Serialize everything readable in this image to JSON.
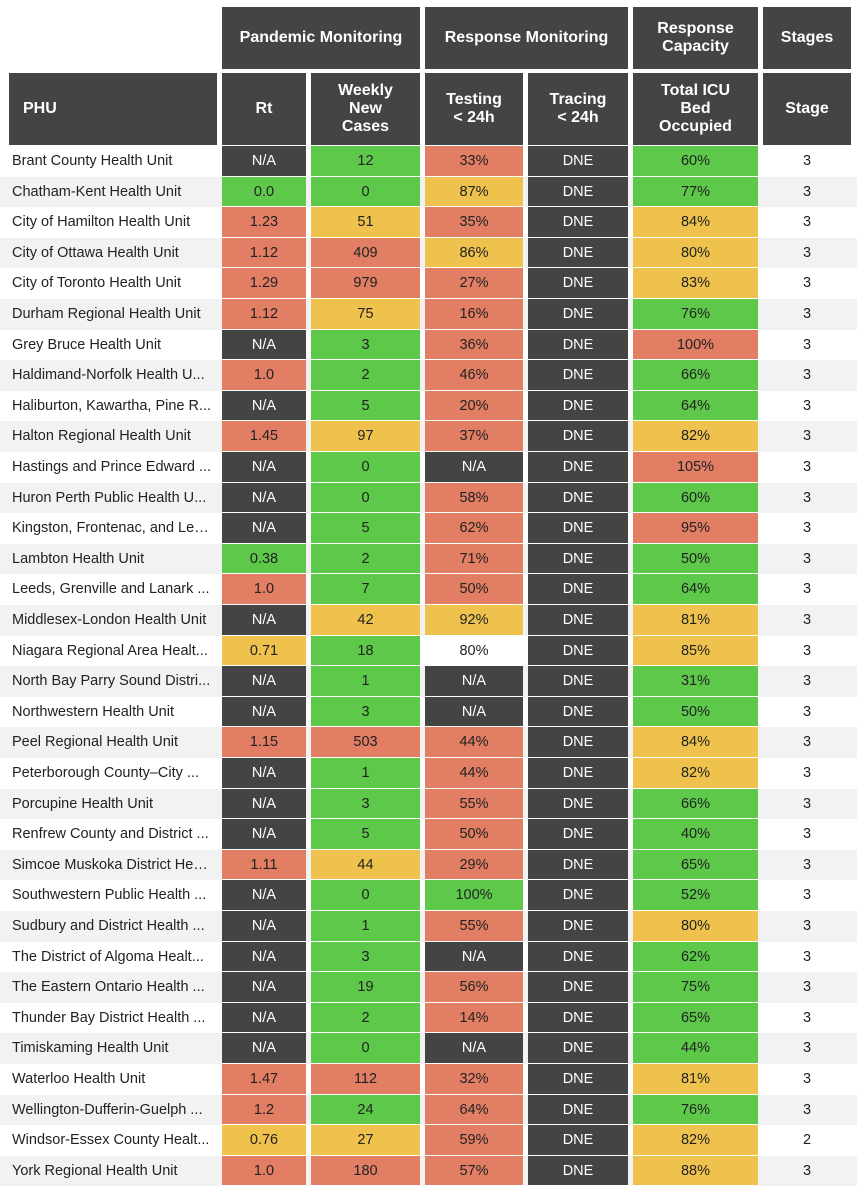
{
  "chart_data": {
    "type": "table",
    "header_groups": [
      {
        "label": "Pandemic Monitoring",
        "span": [
          "rt",
          "cases"
        ]
      },
      {
        "label": "Response Monitoring",
        "span": [
          "testing",
          "tracing"
        ]
      },
      {
        "label": "Response Capacity",
        "span": [
          "icu"
        ]
      },
      {
        "label": "Stages",
        "span": [
          "stage"
        ]
      }
    ],
    "columns": {
      "phu": "PHU",
      "rt": "Rt",
      "cases": "Weekly\nNew\nCases",
      "testing": "Testing\n< 24h",
      "tracing": "Tracing\n< 24h",
      "icu": "Total ICU\nBed\nOccupied",
      "stage": "Stage"
    },
    "colors": {
      "header": "#444444",
      "green": "#5dc84a",
      "yellow": "#efc24d",
      "red": "#e27e63",
      "dark": "#444444",
      "none": "#ffffff",
      "row_alt": "#f2f2f2"
    },
    "rows": [
      {
        "phu": "Brant County Health Unit",
        "rt": [
          "N/A",
          "dark"
        ],
        "cases": [
          "12",
          "green"
        ],
        "testing": [
          "33%",
          "red"
        ],
        "tracing": [
          "DNE",
          "dark"
        ],
        "icu": [
          "60%",
          "green"
        ],
        "stage": "3"
      },
      {
        "phu": "Chatham-Kent Health Unit",
        "rt": [
          "0.0",
          "green"
        ],
        "cases": [
          "0",
          "green"
        ],
        "testing": [
          "87%",
          "yellow"
        ],
        "tracing": [
          "DNE",
          "dark"
        ],
        "icu": [
          "77%",
          "green"
        ],
        "stage": "3"
      },
      {
        "phu": "City of Hamilton Health Unit",
        "rt": [
          "1.23",
          "red"
        ],
        "cases": [
          "51",
          "yellow"
        ],
        "testing": [
          "35%",
          "red"
        ],
        "tracing": [
          "DNE",
          "dark"
        ],
        "icu": [
          "84%",
          "yellow"
        ],
        "stage": "3"
      },
      {
        "phu": "City of Ottawa Health Unit",
        "rt": [
          "1.12",
          "red"
        ],
        "cases": [
          "409",
          "red"
        ],
        "testing": [
          "86%",
          "yellow"
        ],
        "tracing": [
          "DNE",
          "dark"
        ],
        "icu": [
          "80%",
          "yellow"
        ],
        "stage": "3"
      },
      {
        "phu": "City of Toronto Health Unit",
        "rt": [
          "1.29",
          "red"
        ],
        "cases": [
          "979",
          "red"
        ],
        "testing": [
          "27%",
          "red"
        ],
        "tracing": [
          "DNE",
          "dark"
        ],
        "icu": [
          "83%",
          "yellow"
        ],
        "stage": "3"
      },
      {
        "phu": "Durham Regional Health Unit",
        "rt": [
          "1.12",
          "red"
        ],
        "cases": [
          "75",
          "yellow"
        ],
        "testing": [
          "16%",
          "red"
        ],
        "tracing": [
          "DNE",
          "dark"
        ],
        "icu": [
          "76%",
          "green"
        ],
        "stage": "3"
      },
      {
        "phu": "Grey Bruce Health Unit",
        "rt": [
          "N/A",
          "dark"
        ],
        "cases": [
          "3",
          "green"
        ],
        "testing": [
          "36%",
          "red"
        ],
        "tracing": [
          "DNE",
          "dark"
        ],
        "icu": [
          "100%",
          "red"
        ],
        "stage": "3"
      },
      {
        "phu": "Haldimand-Norfolk Health U...",
        "rt": [
          "1.0",
          "red"
        ],
        "cases": [
          "2",
          "green"
        ],
        "testing": [
          "46%",
          "red"
        ],
        "tracing": [
          "DNE",
          "dark"
        ],
        "icu": [
          "66%",
          "green"
        ],
        "stage": "3"
      },
      {
        "phu": "Haliburton, Kawartha, Pine R...",
        "rt": [
          "N/A",
          "dark"
        ],
        "cases": [
          "5",
          "green"
        ],
        "testing": [
          "20%",
          "red"
        ],
        "tracing": [
          "DNE",
          "dark"
        ],
        "icu": [
          "64%",
          "green"
        ],
        "stage": "3"
      },
      {
        "phu": "Halton Regional Health Unit",
        "rt": [
          "1.45",
          "red"
        ],
        "cases": [
          "97",
          "yellow"
        ],
        "testing": [
          "37%",
          "red"
        ],
        "tracing": [
          "DNE",
          "dark"
        ],
        "icu": [
          "82%",
          "yellow"
        ],
        "stage": "3"
      },
      {
        "phu": "Hastings and Prince Edward ...",
        "rt": [
          "N/A",
          "dark"
        ],
        "cases": [
          "0",
          "green"
        ],
        "testing": [
          "N/A",
          "dark"
        ],
        "tracing": [
          "DNE",
          "dark"
        ],
        "icu": [
          "105%",
          "red"
        ],
        "stage": "3"
      },
      {
        "phu": "Huron Perth Public Health U...",
        "rt": [
          "N/A",
          "dark"
        ],
        "cases": [
          "0",
          "green"
        ],
        "testing": [
          "58%",
          "red"
        ],
        "tracing": [
          "DNE",
          "dark"
        ],
        "icu": [
          "60%",
          "green"
        ],
        "stage": "3"
      },
      {
        "phu": "Kingston, Frontenac, and Len...",
        "rt": [
          "N/A",
          "dark"
        ],
        "cases": [
          "5",
          "green"
        ],
        "testing": [
          "62%",
          "red"
        ],
        "tracing": [
          "DNE",
          "dark"
        ],
        "icu": [
          "95%",
          "red"
        ],
        "stage": "3"
      },
      {
        "phu": "Lambton Health Unit",
        "rt": [
          "0.38",
          "green"
        ],
        "cases": [
          "2",
          "green"
        ],
        "testing": [
          "71%",
          "red"
        ],
        "tracing": [
          "DNE",
          "dark"
        ],
        "icu": [
          "50%",
          "green"
        ],
        "stage": "3"
      },
      {
        "phu": "Leeds, Grenville and Lanark ...",
        "rt": [
          "1.0",
          "red"
        ],
        "cases": [
          "7",
          "green"
        ],
        "testing": [
          "50%",
          "red"
        ],
        "tracing": [
          "DNE",
          "dark"
        ],
        "icu": [
          "64%",
          "green"
        ],
        "stage": "3"
      },
      {
        "phu": "Middlesex-London Health Unit",
        "rt": [
          "N/A",
          "dark"
        ],
        "cases": [
          "42",
          "yellow"
        ],
        "testing": [
          "92%",
          "yellow"
        ],
        "tracing": [
          "DNE",
          "dark"
        ],
        "icu": [
          "81%",
          "yellow"
        ],
        "stage": "3"
      },
      {
        "phu": "Niagara Regional Area Healt...",
        "rt": [
          "0.71",
          "yellow"
        ],
        "cases": [
          "18",
          "green"
        ],
        "testing": [
          "80%",
          "none"
        ],
        "tracing": [
          "DNE",
          "dark"
        ],
        "icu": [
          "85%",
          "yellow"
        ],
        "stage": "3"
      },
      {
        "phu": "North Bay Parry Sound Distri...",
        "rt": [
          "N/A",
          "dark"
        ],
        "cases": [
          "1",
          "green"
        ],
        "testing": [
          "N/A",
          "dark"
        ],
        "tracing": [
          "DNE",
          "dark"
        ],
        "icu": [
          "31%",
          "green"
        ],
        "stage": "3"
      },
      {
        "phu": "Northwestern Health Unit",
        "rt": [
          "N/A",
          "dark"
        ],
        "cases": [
          "3",
          "green"
        ],
        "testing": [
          "N/A",
          "dark"
        ],
        "tracing": [
          "DNE",
          "dark"
        ],
        "icu": [
          "50%",
          "green"
        ],
        "stage": "3"
      },
      {
        "phu": "Peel Regional Health Unit",
        "rt": [
          "1.15",
          "red"
        ],
        "cases": [
          "503",
          "red"
        ],
        "testing": [
          "44%",
          "red"
        ],
        "tracing": [
          "DNE",
          "dark"
        ],
        "icu": [
          "84%",
          "yellow"
        ],
        "stage": "3"
      },
      {
        "phu": "Peterborough County–City ...",
        "rt": [
          "N/A",
          "dark"
        ],
        "cases": [
          "1",
          "green"
        ],
        "testing": [
          "44%",
          "red"
        ],
        "tracing": [
          "DNE",
          "dark"
        ],
        "icu": [
          "82%",
          "yellow"
        ],
        "stage": "3"
      },
      {
        "phu": "Porcupine Health Unit",
        "rt": [
          "N/A",
          "dark"
        ],
        "cases": [
          "3",
          "green"
        ],
        "testing": [
          "55%",
          "red"
        ],
        "tracing": [
          "DNE",
          "dark"
        ],
        "icu": [
          "66%",
          "green"
        ],
        "stage": "3"
      },
      {
        "phu": "Renfrew County and District ...",
        "rt": [
          "N/A",
          "dark"
        ],
        "cases": [
          "5",
          "green"
        ],
        "testing": [
          "50%",
          "red"
        ],
        "tracing": [
          "DNE",
          "dark"
        ],
        "icu": [
          "40%",
          "green"
        ],
        "stage": "3"
      },
      {
        "phu": "Simcoe Muskoka District Hea...",
        "rt": [
          "1.11",
          "red"
        ],
        "cases": [
          "44",
          "yellow"
        ],
        "testing": [
          "29%",
          "red"
        ],
        "tracing": [
          "DNE",
          "dark"
        ],
        "icu": [
          "65%",
          "green"
        ],
        "stage": "3"
      },
      {
        "phu": "Southwestern Public Health ...",
        "rt": [
          "N/A",
          "dark"
        ],
        "cases": [
          "0",
          "green"
        ],
        "testing": [
          "100%",
          "green"
        ],
        "tracing": [
          "DNE",
          "dark"
        ],
        "icu": [
          "52%",
          "green"
        ],
        "stage": "3"
      },
      {
        "phu": "Sudbury and District Health ...",
        "rt": [
          "N/A",
          "dark"
        ],
        "cases": [
          "1",
          "green"
        ],
        "testing": [
          "55%",
          "red"
        ],
        "tracing": [
          "DNE",
          "dark"
        ],
        "icu": [
          "80%",
          "yellow"
        ],
        "stage": "3"
      },
      {
        "phu": "The District of Algoma Healt...",
        "rt": [
          "N/A",
          "dark"
        ],
        "cases": [
          "3",
          "green"
        ],
        "testing": [
          "N/A",
          "dark"
        ],
        "tracing": [
          "DNE",
          "dark"
        ],
        "icu": [
          "62%",
          "green"
        ],
        "stage": "3"
      },
      {
        "phu": "The Eastern Ontario Health ...",
        "rt": [
          "N/A",
          "dark"
        ],
        "cases": [
          "19",
          "green"
        ],
        "testing": [
          "56%",
          "red"
        ],
        "tracing": [
          "DNE",
          "dark"
        ],
        "icu": [
          "75%",
          "green"
        ],
        "stage": "3"
      },
      {
        "phu": "Thunder Bay District Health ...",
        "rt": [
          "N/A",
          "dark"
        ],
        "cases": [
          "2",
          "green"
        ],
        "testing": [
          "14%",
          "red"
        ],
        "tracing": [
          "DNE",
          "dark"
        ],
        "icu": [
          "65%",
          "green"
        ],
        "stage": "3"
      },
      {
        "phu": "Timiskaming Health Unit",
        "rt": [
          "N/A",
          "dark"
        ],
        "cases": [
          "0",
          "green"
        ],
        "testing": [
          "N/A",
          "dark"
        ],
        "tracing": [
          "DNE",
          "dark"
        ],
        "icu": [
          "44%",
          "green"
        ],
        "stage": "3"
      },
      {
        "phu": "Waterloo Health Unit",
        "rt": [
          "1.47",
          "red"
        ],
        "cases": [
          "112",
          "red"
        ],
        "testing": [
          "32%",
          "red"
        ],
        "tracing": [
          "DNE",
          "dark"
        ],
        "icu": [
          "81%",
          "yellow"
        ],
        "stage": "3"
      },
      {
        "phu": "Wellington-Dufferin-Guelph ...",
        "rt": [
          "1.2",
          "red"
        ],
        "cases": [
          "24",
          "green"
        ],
        "testing": [
          "64%",
          "red"
        ],
        "tracing": [
          "DNE",
          "dark"
        ],
        "icu": [
          "76%",
          "green"
        ],
        "stage": "3"
      },
      {
        "phu": "Windsor-Essex County Healt...",
        "rt": [
          "0.76",
          "yellow"
        ],
        "cases": [
          "27",
          "yellow"
        ],
        "testing": [
          "59%",
          "red"
        ],
        "tracing": [
          "DNE",
          "dark"
        ],
        "icu": [
          "82%",
          "yellow"
        ],
        "stage": "2"
      },
      {
        "phu": "York Regional Health Unit",
        "rt": [
          "1.0",
          "red"
        ],
        "cases": [
          "180",
          "red"
        ],
        "testing": [
          "57%",
          "red"
        ],
        "tracing": [
          "DNE",
          "dark"
        ],
        "icu": [
          "88%",
          "yellow"
        ],
        "stage": "3"
      }
    ]
  }
}
